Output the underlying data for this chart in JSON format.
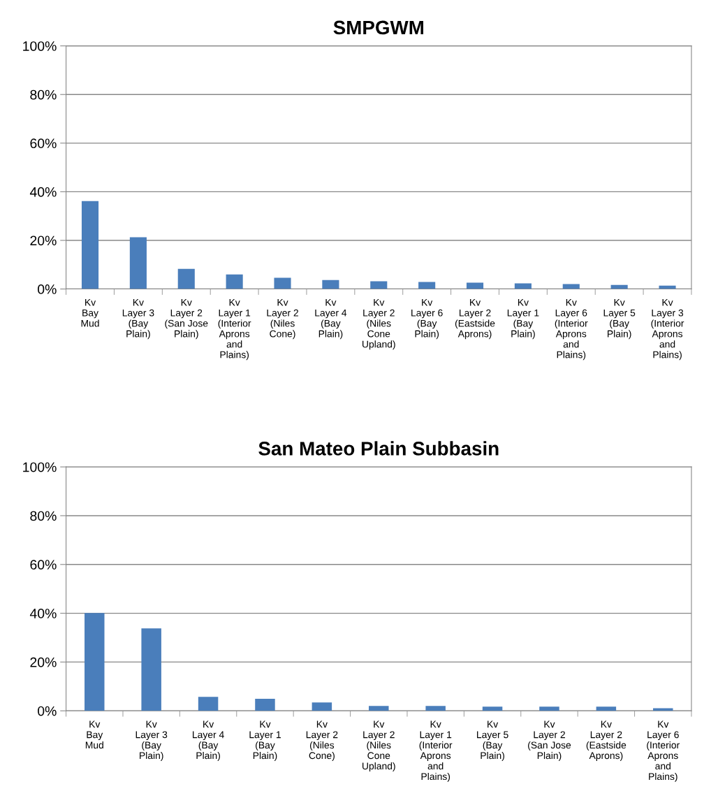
{
  "chart_data": [
    {
      "type": "bar",
      "title": "SMPGWM",
      "categories": [
        "Kv\nBay\nMud",
        "Kv\nLayer 3\n(Bay\nPlain)",
        "Kv\nLayer 2\n(San Jose\nPlain)",
        "Kv\nLayer 1\n(Interior\nAprons\nand\nPlains)",
        "Kv\nLayer 2\n(Niles\nCone)",
        "Kv\nLayer 4\n(Bay\nPlain)",
        "Kv\nLayer 2\n(Niles\nCone\nUpland)",
        "Kv\nLayer 6\n(Bay\nPlain)",
        "Kv\nLayer 2\n(Eastside\nAprons)",
        "Kv\nLayer 1\n(Bay\nPlain)",
        "Kv\nLayer 6\n(Interior\nAprons\nand\nPlains)",
        "Kv\nLayer 5\n(Bay\nPlain)",
        "Kv\nLayer 3\n(Interior\nAprons\nand\nPlains)"
      ],
      "values": [
        36.2,
        21.3,
        8.3,
        6.0,
        4.6,
        3.7,
        3.2,
        2.9,
        2.6,
        2.3,
        2.0,
        1.7,
        1.4
      ],
      "color": "#4a7ebb",
      "ylim": [
        0,
        100
      ],
      "yticks": [
        {
          "value": 0,
          "label": "0%"
        },
        {
          "value": 20,
          "label": "20%"
        },
        {
          "value": 40,
          "label": "40%"
        },
        {
          "value": 60,
          "label": "60%"
        },
        {
          "value": 80,
          "label": "80%"
        },
        {
          "value": 100,
          "label": "100%"
        }
      ],
      "grid": "y"
    },
    {
      "type": "bar",
      "title": "San Mateo Plain Subbasin",
      "categories": [
        "Kv\nBay\nMud",
        "Kv\nLayer 3\n(Bay\nPlain)",
        "Kv\nLayer 4\n(Bay\nPlain)",
        "Kv\nLayer 1\n(Bay\nPlain)",
        "Kv\nLayer 2\n(Niles\nCone)",
        "Kv\nLayer 2\n(Niles\nCone\nUpland)",
        "Kv\nLayer 1\n(Interior\nAprons\nand\nPlains)",
        "Kv\nLayer 5\n(Bay\nPlain)",
        "Kv\nLayer 2\n(San Jose\nPlain)",
        "Kv\nLayer 2\n(Eastside\nAprons)",
        "Kv\nLayer 6\n(Interior\nAprons\nand\nPlains)"
      ],
      "values": [
        40.1,
        33.8,
        5.7,
        4.9,
        3.4,
        2.0,
        2.0,
        1.7,
        1.7,
        1.7,
        1.1
      ],
      "color": "#4a7ebb",
      "ylim": [
        0,
        100
      ],
      "yticks": [
        {
          "value": 0,
          "label": "0%"
        },
        {
          "value": 20,
          "label": "20%"
        },
        {
          "value": 40,
          "label": "40%"
        },
        {
          "value": 60,
          "label": "60%"
        },
        {
          "value": 80,
          "label": "80%"
        },
        {
          "value": 100,
          "label": "100%"
        }
      ],
      "grid": "y"
    }
  ]
}
